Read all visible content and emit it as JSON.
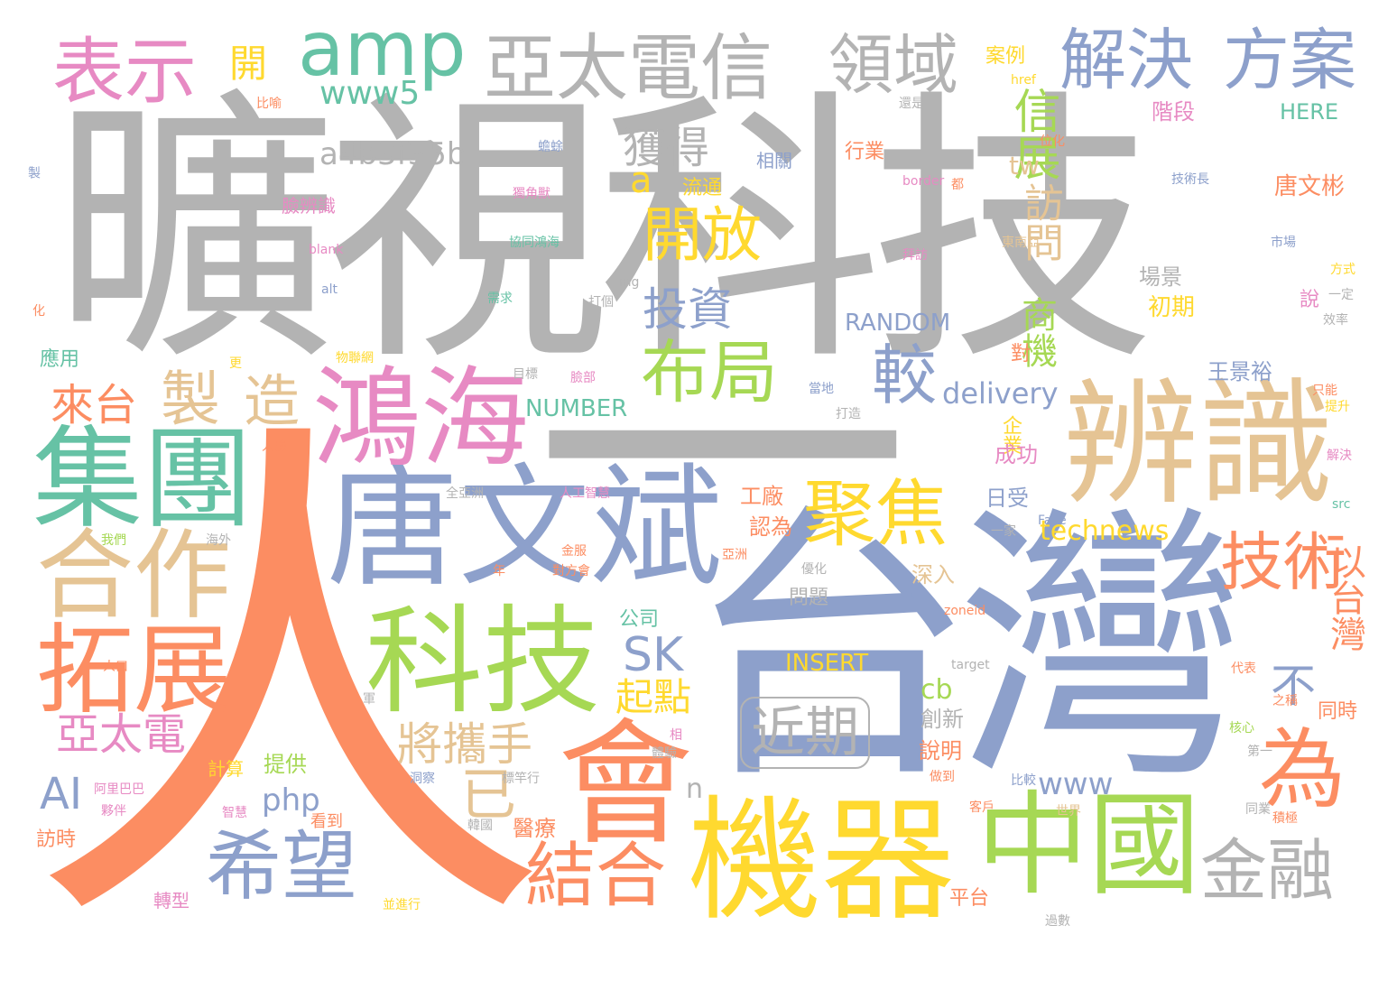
{
  "colors": {
    "gray": "#b3b3b3",
    "blue": "#8da0cb",
    "orange": "#fc8d62",
    "teal": "#66c2a5",
    "pink": "#e78ac3",
    "green": "#a6d854",
    "yellow": "#ffd92f",
    "tan": "#e5c494"
  },
  "words": [
    {
      "text": "曠視科技",
      "color": "gray"
    },
    {
      "text": "一",
      "color": "gray"
    },
    {
      "text": "人",
      "color": "orange"
    },
    {
      "text": "台灣",
      "color": "blue"
    },
    {
      "text": "唐文斌",
      "color": "blue"
    },
    {
      "text": "鴻海",
      "color": "pink"
    },
    {
      "text": "科技",
      "color": "green"
    },
    {
      "text": "集團",
      "color": "teal"
    },
    {
      "text": "合作",
      "color": "tan"
    },
    {
      "text": "拓展",
      "color": "orange"
    },
    {
      "text": "辨識",
      "color": "tan"
    },
    {
      "text": "機器",
      "color": "yellow"
    },
    {
      "text": "會",
      "color": "orange"
    },
    {
      "text": "中國",
      "color": "green"
    },
    {
      "text": "亞太電信",
      "color": "gray"
    },
    {
      "text": "領域",
      "color": "gray"
    },
    {
      "text": "解決",
      "color": "blue"
    },
    {
      "text": "方案",
      "color": "blue"
    },
    {
      "text": "amp",
      "color": "teal"
    },
    {
      "text": "表示",
      "color": "pink"
    },
    {
      "text": "布局",
      "color": "green"
    },
    {
      "text": "聚焦",
      "color": "yellow"
    },
    {
      "text": "開放",
      "color": "yellow"
    },
    {
      "text": "技術",
      "color": "orange"
    },
    {
      "text": "為",
      "color": "orange"
    },
    {
      "text": "金融",
      "color": "gray"
    },
    {
      "text": "希望",
      "color": "blue"
    },
    {
      "text": "結合",
      "color": "orange"
    },
    {
      "text": "近期",
      "color": "gray"
    },
    {
      "text": "投資",
      "color": "blue"
    },
    {
      "text": "較",
      "color": "blue"
    },
    {
      "text": "獲得",
      "color": "gray"
    },
    {
      "text": "來台",
      "color": "orange"
    },
    {
      "text": "製",
      "color": "tan"
    },
    {
      "text": "造",
      "color": "tan"
    },
    {
      "text": "將攜手",
      "color": "tan"
    },
    {
      "text": "亞太電",
      "color": "pink"
    },
    {
      "text": "SK",
      "color": "blue"
    },
    {
      "text": "起點",
      "color": "yellow"
    },
    {
      "text": "不",
      "color": "blue"
    },
    {
      "text": "以台灣",
      "color": "orange"
    },
    {
      "text": "信展",
      "color": "green"
    },
    {
      "text": "訪問",
      "color": "tan"
    },
    {
      "text": "商機",
      "color": "green"
    },
    {
      "text": "AI",
      "color": "blue"
    },
    {
      "text": "已",
      "color": "tan"
    },
    {
      "text": "www5",
      "color": "teal"
    },
    {
      "text": "a4b3f35b",
      "color": "gray"
    },
    {
      "text": "a",
      "color": "yellow"
    },
    {
      "text": "開",
      "color": "yellow"
    },
    {
      "text": "delivery",
      "color": "blue"
    },
    {
      "text": "technews",
      "color": "yellow"
    },
    {
      "text": "www",
      "color": "blue"
    },
    {
      "text": "RANDOM",
      "color": "blue"
    },
    {
      "text": "NUMBER",
      "color": "teal"
    },
    {
      "text": "INSERT",
      "color": "yellow"
    },
    {
      "text": "php",
      "color": "blue"
    },
    {
      "text": "tw",
      "color": "tan"
    },
    {
      "text": "cb",
      "color": "green"
    },
    {
      "text": "n",
      "color": "gray"
    },
    {
      "text": "HERE",
      "color": "teal"
    },
    {
      "text": "唐文彬",
      "color": "orange"
    },
    {
      "text": "階段",
      "color": "pink"
    },
    {
      "text": "場景",
      "color": "gray"
    },
    {
      "text": "初期",
      "color": "yellow"
    },
    {
      "text": "王景裕",
      "color": "blue"
    },
    {
      "text": "企業",
      "color": "yellow"
    },
    {
      "text": "成功",
      "color": "pink"
    },
    {
      "text": "日受",
      "color": "blue"
    },
    {
      "text": "工廠",
      "color": "orange"
    },
    {
      "text": "認為",
      "color": "orange"
    },
    {
      "text": "深入",
      "color": "tan"
    },
    {
      "text": "問題",
      "color": "gray"
    },
    {
      "text": "公司",
      "color": "teal"
    },
    {
      "text": "創新",
      "color": "gray"
    },
    {
      "text": "說明",
      "color": "orange"
    },
    {
      "text": "提供",
      "color": "green"
    },
    {
      "text": "醫療",
      "color": "orange"
    },
    {
      "text": "平台",
      "color": "orange"
    },
    {
      "text": "流通",
      "color": "yellow"
    },
    {
      "text": "行業",
      "color": "orange"
    },
    {
      "text": "相關",
      "color": "blue"
    },
    {
      "text": "案例",
      "color": "yellow"
    },
    {
      "text": "臉辨識",
      "color": "pink"
    },
    {
      "text": "應用",
      "color": "teal"
    },
    {
      "text": "訪時",
      "color": "orange"
    },
    {
      "text": "同時",
      "color": "orange"
    },
    {
      "text": "對",
      "color": "orange"
    },
    {
      "text": "說",
      "color": "pink"
    },
    {
      "text": "比喻",
      "color": "orange"
    },
    {
      "text": "製",
      "color": "blue"
    },
    {
      "text": "獨角獸",
      "color": "pink"
    },
    {
      "text": "蟾蜍",
      "color": "blue"
    },
    {
      "text": "協同鴻海",
      "color": "teal"
    },
    {
      "text": "阿里巴巴",
      "color": "pink"
    },
    {
      "text": "夥伴",
      "color": "pink"
    },
    {
      "text": "轉型",
      "color": "pink"
    },
    {
      "text": "人工智慧",
      "color": "pink"
    },
    {
      "text": "全亞洲",
      "color": "gray"
    },
    {
      "text": "技術長",
      "color": "blue"
    },
    {
      "text": "東南亞",
      "color": "tan"
    },
    {
      "text": "市場",
      "color": "blue"
    },
    {
      "text": "方式",
      "color": "yellow"
    },
    {
      "text": "一定",
      "color": "gray"
    },
    {
      "text": "效率",
      "color": "gray"
    },
    {
      "text": "只能",
      "color": "orange"
    },
    {
      "text": "提升",
      "color": "yellow"
    },
    {
      "text": "解決",
      "color": "pink"
    },
    {
      "text": "src",
      "color": "teal"
    },
    {
      "text": "Face",
      "color": "blue"
    },
    {
      "text": "zoneid",
      "color": "orange"
    },
    {
      "text": "target",
      "color": "gray"
    },
    {
      "text": "border",
      "color": "pink"
    },
    {
      "text": "blank",
      "color": "pink"
    },
    {
      "text": "alt",
      "color": "blue"
    },
    {
      "text": "img",
      "color": "gray"
    },
    {
      "text": "href",
      "color": "yellow"
    },
    {
      "text": "ck",
      "color": "blue"
    },
    {
      "text": "物聯網",
      "color": "yellow"
    },
    {
      "text": "目標",
      "color": "gray"
    },
    {
      "text": "臉部",
      "color": "pink"
    },
    {
      "text": "當地",
      "color": "blue"
    },
    {
      "text": "打造",
      "color": "gray"
    },
    {
      "text": "世界",
      "color": "tan"
    },
    {
      "text": "比較",
      "color": "blue"
    },
    {
      "text": "客戶",
      "color": "orange"
    },
    {
      "text": "做到",
      "color": "orange"
    },
    {
      "text": "第一",
      "color": "gray"
    },
    {
      "text": "核心",
      "color": "green"
    },
    {
      "text": "之稱",
      "color": "orange"
    },
    {
      "text": "代表",
      "color": "orange"
    },
    {
      "text": "同業",
      "color": "gray"
    },
    {
      "text": "積極",
      "color": "orange"
    },
    {
      "text": "過數",
      "color": "gray"
    },
    {
      "text": "計算",
      "color": "yellow"
    },
    {
      "text": "看到",
      "color": "orange"
    },
    {
      "text": "智慧",
      "color": "pink"
    },
    {
      "text": "韓國",
      "color": "gray"
    },
    {
      "text": "標竿行",
      "color": "gray"
    },
    {
      "text": "洞察",
      "color": "blue"
    },
    {
      "text": "金服",
      "color": "orange"
    },
    {
      "text": "對方會",
      "color": "orange"
    },
    {
      "text": "優化",
      "color": "gray"
    },
    {
      "text": "需求",
      "color": "teal"
    },
    {
      "text": "拜訪",
      "color": "pink"
    },
    {
      "text": "一家",
      "color": "gray"
    },
    {
      "text": "並進行",
      "color": "yellow"
    },
    {
      "text": "海外",
      "color": "gray"
    },
    {
      "text": "我們",
      "color": "green"
    },
    {
      "text": "亞洲",
      "color": "orange"
    },
    {
      "text": "軍",
      "color": "gray"
    },
    {
      "text": "年",
      "color": "orange"
    },
    {
      "text": "體驗",
      "color": "gray"
    },
    {
      "text": "更",
      "color": "yellow"
    },
    {
      "text": "人臉",
      "color": "orange"
    },
    {
      "text": "還是",
      "color": "gray"
    },
    {
      "text": "位化",
      "color": "orange"
    },
    {
      "text": "打個",
      "color": "gray"
    },
    {
      "text": "化",
      "color": "orange"
    },
    {
      "text": "人口",
      "color": "orange"
    },
    {
      "text": "都",
      "color": "orange"
    },
    {
      "text": "相",
      "color": "pink"
    }
  ]
}
